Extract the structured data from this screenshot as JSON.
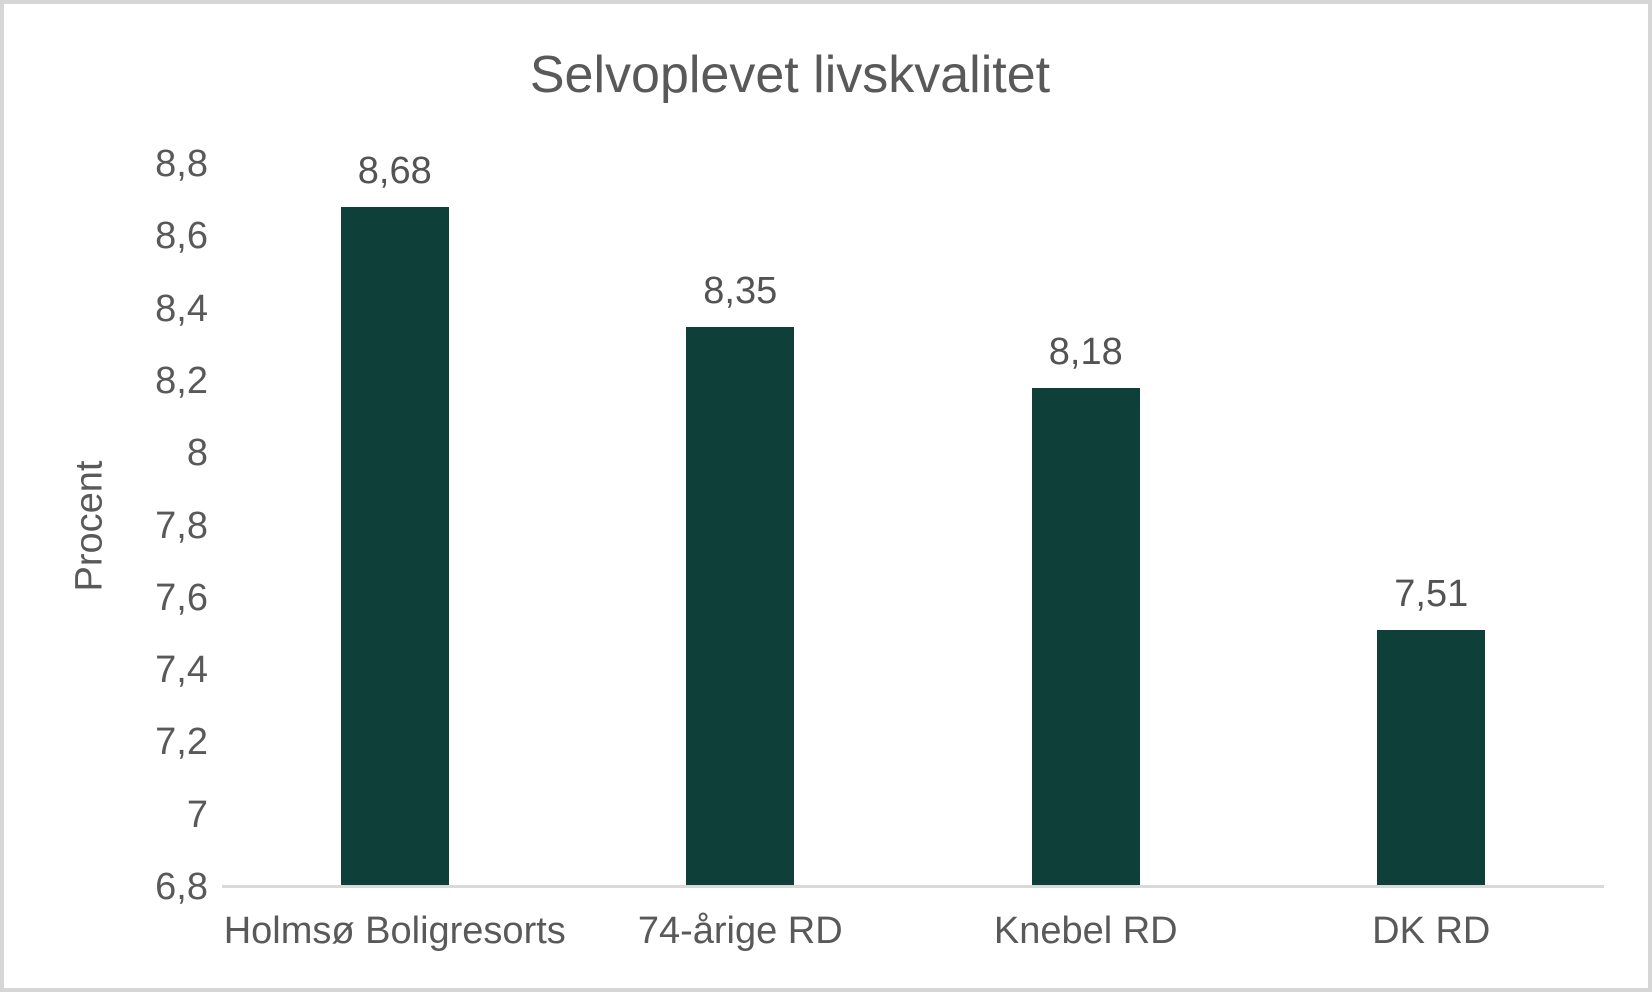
{
  "chart_data": {
    "type": "bar",
    "title": "Selvoplevet livskvalitet",
    "xlabel": "",
    "ylabel": "Procent",
    "categories": [
      "Holmsø Boligresorts",
      "74-årige RD",
      "Knebel RD",
      "DK RD"
    ],
    "values": [
      8.68,
      8.35,
      8.18,
      7.51
    ],
    "value_labels": [
      "8,68",
      "8,35",
      "8,18",
      "7,51"
    ],
    "ylim": [
      6.8,
      8.8
    ],
    "ytick_step": 0.2,
    "ytick_labels": [
      "6,8",
      "7",
      "7,2",
      "7,4",
      "7,6",
      "7,8",
      "8",
      "8,2",
      "8,4",
      "8,6",
      "8,8"
    ],
    "grid": false,
    "legend": "none",
    "colors": {
      "bar": "#0e3f38",
      "axis_line": "#d9d9d9",
      "text": "#595959",
      "value_label_text": "#535353",
      "border": "#d6d6d6"
    }
  }
}
